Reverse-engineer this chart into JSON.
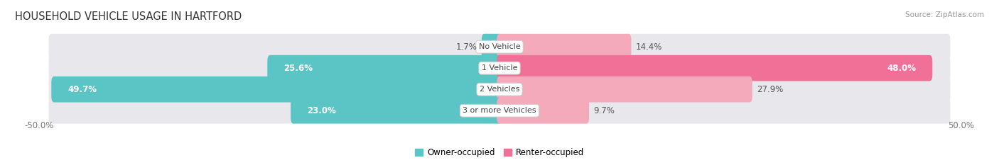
{
  "title": "HOUSEHOLD VEHICLE USAGE IN HARTFORD",
  "source": "Source: ZipAtlas.com",
  "categories": [
    "No Vehicle",
    "1 Vehicle",
    "2 Vehicles",
    "3 or more Vehicles"
  ],
  "owner_values": [
    1.7,
    25.6,
    49.7,
    23.0
  ],
  "renter_values": [
    14.4,
    48.0,
    27.9,
    9.7
  ],
  "owner_color": "#5BC4C4",
  "renter_color": "#F07098",
  "renter_color_light": "#F4A0BC",
  "bar_bg_color": "#E8E8EC",
  "owner_label": "Owner-occupied",
  "renter_label": "Renter-occupied",
  "x_left_label": "-50.0%",
  "x_right_label": "50.0%",
  "max_val": 50.0,
  "title_fontsize": 10.5,
  "label_fontsize": 8.5,
  "cat_fontsize": 8.0,
  "source_fontsize": 7.5,
  "figsize": [
    14.06,
    2.33
  ],
  "dpi": 100
}
